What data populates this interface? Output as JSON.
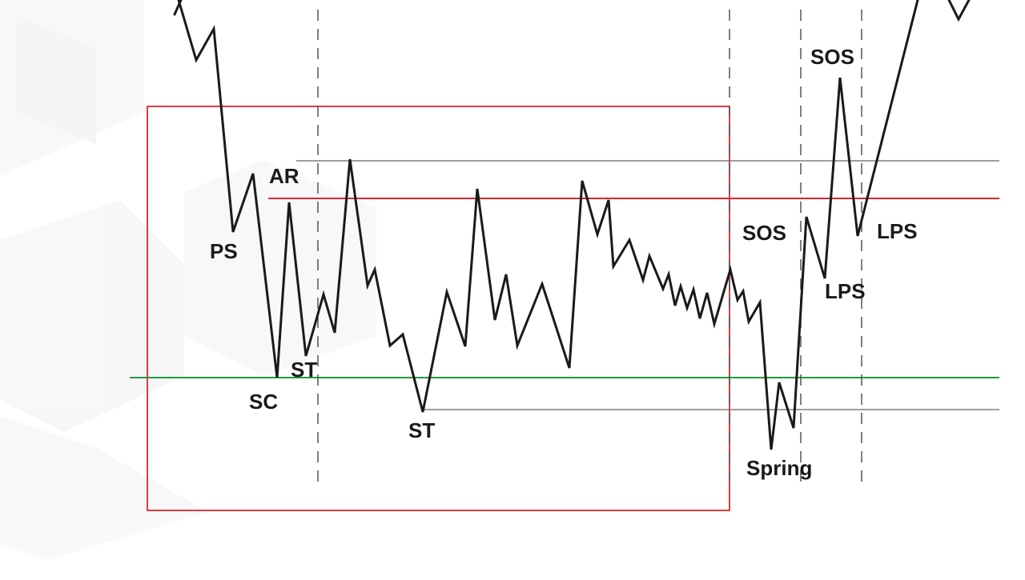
{
  "diagram": {
    "type": "wyckoff-accumulation-schematic",
    "labels": {
      "ps": "PS",
      "sc": "SC",
      "ar": "AR",
      "st1": "ST",
      "st2": "ST",
      "spring": "Spring",
      "sos1": "SOS",
      "sos2": "SOS",
      "lps1": "LPS",
      "lps2": "LPS"
    },
    "colors": {
      "price_line": "#1a1a1a",
      "resistance_line": "#e0262d",
      "support_line": "#1f9a3f",
      "range_box": "#e0262d",
      "guide_lines": "#666666",
      "background_pattern": "#f2f2f4"
    }
  }
}
